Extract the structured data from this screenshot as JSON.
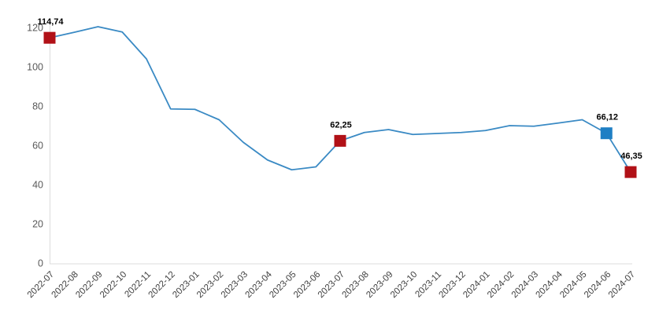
{
  "chart_data": {
    "type": "line",
    "title": "",
    "xlabel": "",
    "ylabel": "",
    "x": [
      "2022-07",
      "2022-08",
      "2022-09",
      "2022-10",
      "2022-11",
      "2022-12",
      "2023-01",
      "2023-02",
      "2023-03",
      "2023-04",
      "2023-05",
      "2023-06",
      "2023-07",
      "2023-08",
      "2023-09",
      "2023-10",
      "2023-11",
      "2023-12",
      "2024-01",
      "2024-02",
      "2024-03",
      "2024-04",
      "2024-05",
      "2024-06",
      "2024-07"
    ],
    "values": [
      114.74,
      117.5,
      120.4,
      117.7,
      104.0,
      78.5,
      78.3,
      73.0,
      61.5,
      52.5,
      47.5,
      49.0,
      62.25,
      66.5,
      68.0,
      65.5,
      66.0,
      66.5,
      67.5,
      70.0,
      69.7,
      71.3,
      73.0,
      66.12,
      46.35
    ],
    "ylim": [
      0,
      120
    ],
    "yticks": [
      0,
      20,
      40,
      60,
      80,
      100,
      120
    ],
    "grid": false,
    "legend": "none",
    "line_color": "#3a8ac4",
    "axis_line_color": "#dcdcdc",
    "tick_label_color": "#595959",
    "x_label_color": "#404040",
    "data_label_color": "#000000",
    "annotated_points": [
      {
        "x": "2022-07",
        "value": 114.74,
        "label": "114,74",
        "marker_color": "#b11117"
      },
      {
        "x": "2023-07",
        "value": 62.25,
        "label": "62,25",
        "marker_color": "#b11117"
      },
      {
        "x": "2024-06",
        "value": 66.12,
        "label": "66,12",
        "marker_color": "#1f7fc4"
      },
      {
        "x": "2024-07",
        "value": 46.35,
        "label": "46,35",
        "marker_color": "#b11117"
      }
    ]
  }
}
